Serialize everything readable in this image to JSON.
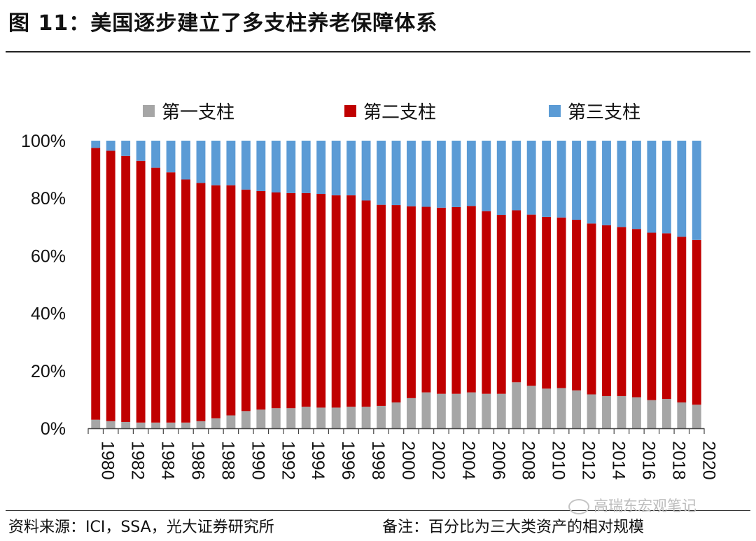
{
  "title": "图 11：美国逐步建立了多支柱养老保障体系",
  "source": "资料来源：ICI，SSA，光大证券研究所",
  "note": "备注：百分比为三大类资产的相对规模",
  "watermark": "高瑞东宏观笔记",
  "chart_data": {
    "type": "bar",
    "stacked": true,
    "title": "",
    "xlabel": "",
    "ylabel": "",
    "ylim": [
      0,
      100
    ],
    "y_unit": "%",
    "y_ticks": [
      "0%",
      "20%",
      "40%",
      "60%",
      "80%",
      "100%"
    ],
    "legend_position": "top",
    "categories": [
      "1980",
      "1981",
      "1982",
      "1983",
      "1984",
      "1985",
      "1986",
      "1987",
      "1988",
      "1989",
      "1990",
      "1991",
      "1992",
      "1993",
      "1994",
      "1995",
      "1996",
      "1997",
      "1998",
      "1999",
      "2000",
      "2001",
      "2002",
      "2003",
      "2004",
      "2005",
      "2006",
      "2007",
      "2008",
      "2009",
      "2010",
      "2011",
      "2012",
      "2013",
      "2014",
      "2015",
      "2016",
      "2017",
      "2018",
      "2019",
      "2020"
    ],
    "x_tick_labels": [
      "1980",
      "1982",
      "1984",
      "1986",
      "1988",
      "1990",
      "1992",
      "1994",
      "1996",
      "1998",
      "2000",
      "2002",
      "2004",
      "2006",
      "2008",
      "2010",
      "2012",
      "2014",
      "2016",
      "2018",
      "2020"
    ],
    "series": [
      {
        "name": "第一支柱",
        "color": "#a6a6a6",
        "values": [
          3.0,
          2.5,
          2.2,
          2.0,
          2.0,
          2.0,
          2.0,
          2.5,
          3.5,
          4.5,
          6.0,
          6.5,
          7.0,
          7.0,
          7.5,
          7.2,
          7.2,
          7.5,
          7.5,
          7.8,
          9.0,
          10.5,
          12.5,
          12.0,
          12.0,
          12.5,
          12.0,
          12.0,
          16.0,
          14.8,
          13.8,
          14.0,
          13.2,
          11.8,
          11.2,
          11.2,
          10.8,
          9.8,
          10.2,
          9.0,
          8.2
        ]
      },
      {
        "name": "第二支柱",
        "color": "#c00000",
        "values": [
          94.5,
          94.0,
          92.5,
          91.0,
          88.6,
          87.0,
          84.5,
          82.8,
          81.0,
          80.0,
          77.0,
          76.0,
          75.0,
          74.8,
          74.3,
          74.3,
          73.8,
          73.5,
          71.7,
          69.9,
          68.6,
          66.7,
          64.5,
          64.7,
          64.9,
          64.8,
          63.5,
          62.2,
          59.8,
          59.5,
          59.7,
          59.3,
          59.3,
          59.4,
          59.4,
          58.8,
          58.5,
          58.2,
          57.6,
          57.6,
          57.3
        ]
      },
      {
        "name": "第三支柱",
        "color": "#5b9bd5",
        "values": [
          2.5,
          3.5,
          5.3,
          7.0,
          9.4,
          11.0,
          13.5,
          14.7,
          15.5,
          15.5,
          17.0,
          17.5,
          18.0,
          18.2,
          18.2,
          18.5,
          19.0,
          19.0,
          20.8,
          22.3,
          22.4,
          22.8,
          23.0,
          23.3,
          23.1,
          22.7,
          24.5,
          25.8,
          24.2,
          25.7,
          26.5,
          26.7,
          27.5,
          28.8,
          29.4,
          30.0,
          30.7,
          32.0,
          32.2,
          33.4,
          34.5
        ]
      }
    ]
  }
}
